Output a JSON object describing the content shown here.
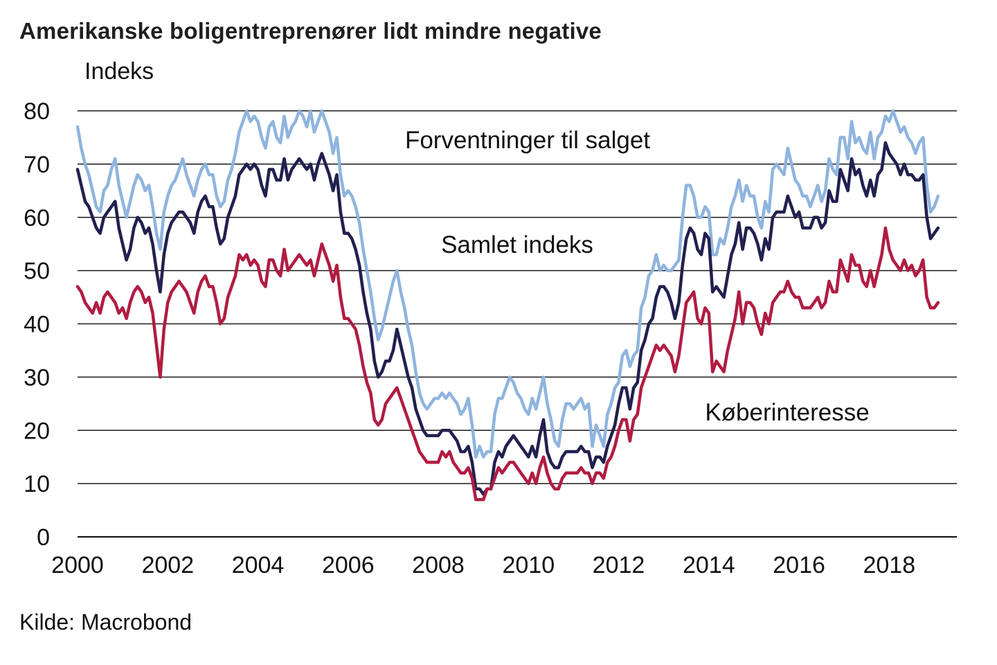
{
  "chart_data": {
    "type": "line",
    "title": "Amerikanske boligentreprenører lidt mindre negative",
    "ylabel": "Indeks",
    "xlabel": "",
    "source": "Kilde: Macrobond",
    "x_start": 2000.0,
    "x_interval": "monthly",
    "xlim": [
      2000,
      2019.5
    ],
    "ylim": [
      0,
      80
    ],
    "yticks": [
      0,
      10,
      20,
      30,
      40,
      50,
      60,
      70,
      80
    ],
    "xticks": [
      2000,
      2002,
      2004,
      2006,
      2008,
      2010,
      2012,
      2014,
      2016,
      2018
    ],
    "grid": "horizontal",
    "legend": "inline-annotations",
    "background": "#ffffff",
    "gridline_color": "#1a1a1a",
    "series": [
      {
        "name": "Forventninger til salget",
        "color": "#8FB4DE",
        "values": [
          77,
          73,
          70,
          68,
          65,
          62,
          61,
          65,
          66,
          69,
          71,
          66,
          63,
          60,
          63,
          66,
          68,
          67,
          65,
          66,
          62,
          57,
          54,
          61,
          64,
          66,
          67,
          69,
          71,
          68,
          66,
          64,
          67,
          69,
          70,
          68,
          68,
          64,
          62,
          63,
          67,
          69,
          72,
          76,
          78,
          80,
          78,
          79,
          78,
          75,
          73,
          77,
          78,
          75,
          74,
          79,
          75,
          77,
          78,
          80,
          79,
          77,
          80,
          76,
          78,
          80,
          78,
          76,
          72,
          75,
          68,
          64,
          65,
          64,
          62,
          59,
          54,
          50,
          46,
          41,
          37,
          39,
          42,
          45,
          48,
          50,
          46,
          43,
          39,
          36,
          31,
          27,
          25,
          24,
          25,
          26,
          26,
          27,
          26,
          27,
          26,
          25,
          23,
          24,
          26,
          21,
          15,
          17,
          15,
          16,
          16,
          23,
          26,
          26,
          28,
          30,
          29,
          27,
          26,
          24,
          23,
          26,
          24,
          27,
          30,
          25,
          22,
          18,
          17,
          22,
          25,
          25,
          24,
          25,
          26,
          24,
          25,
          17,
          21,
          19,
          17,
          23,
          25,
          28,
          29,
          34,
          35,
          32,
          34,
          35,
          43,
          45,
          49,
          50,
          53,
          50,
          51,
          50,
          50,
          51,
          52,
          60,
          66,
          66,
          64,
          60,
          60,
          62,
          61,
          53,
          53,
          56,
          55,
          58,
          62,
          64,
          67,
          63,
          66,
          64,
          64,
          60,
          58,
          63,
          61,
          69,
          70,
          69,
          68,
          73,
          70,
          67,
          66,
          64,
          64,
          62,
          64,
          66,
          63,
          65,
          71,
          69,
          68,
          75,
          75,
          71,
          78,
          74,
          75,
          73,
          72,
          76,
          71,
          75,
          76,
          79,
          78,
          80,
          78,
          76,
          77,
          75,
          74,
          72,
          74,
          75,
          66,
          61,
          62,
          64
        ]
      },
      {
        "name": "Samlet indeks",
        "color": "#21204F",
        "values": [
          69,
          66,
          63,
          62,
          60,
          58,
          57,
          60,
          61,
          62,
          63,
          58,
          55,
          52,
          54,
          58,
          60,
          59,
          57,
          58,
          55,
          50,
          46,
          53,
          57,
          59,
          60,
          61,
          61,
          60,
          59,
          57,
          61,
          63,
          64,
          62,
          62,
          58,
          55,
          56,
          60,
          62,
          64,
          68,
          69,
          70,
          69,
          70,
          69,
          66,
          64,
          69,
          69,
          67,
          67,
          71,
          67,
          69,
          70,
          71,
          70,
          69,
          70,
          67,
          70,
          72,
          70,
          68,
          65,
          68,
          61,
          57,
          57,
          56,
          54,
          51,
          46,
          42,
          39,
          33,
          30,
          31,
          33,
          33,
          35,
          39,
          36,
          33,
          30,
          28,
          24,
          22,
          20,
          19,
          19,
          19,
          19,
          20,
          20,
          20,
          19,
          18,
          16,
          16,
          17,
          14,
          9,
          9,
          8,
          9,
          9,
          14,
          16,
          15,
          17,
          18,
          19,
          18,
          17,
          16,
          15,
          17,
          15,
          19,
          22,
          16,
          14,
          13,
          13,
          15,
          16,
          16,
          16,
          16,
          17,
          16,
          16,
          13,
          15,
          15,
          14,
          17,
          19,
          21,
          25,
          28,
          28,
          24,
          28,
          29,
          35,
          37,
          40,
          41,
          45,
          47,
          47,
          46,
          44,
          41,
          44,
          51,
          56,
          58,
          57,
          54,
          53,
          57,
          56,
          46,
          47,
          46,
          45,
          49,
          53,
          55,
          59,
          54,
          58,
          58,
          57,
          55,
          52,
          56,
          54,
          60,
          61,
          61,
          61,
          64,
          62,
          60,
          61,
          58,
          58,
          58,
          60,
          60,
          58,
          59,
          65,
          63,
          63,
          69,
          67,
          65,
          71,
          68,
          69,
          66,
          64,
          67,
          64,
          68,
          69,
          74,
          72,
          71,
          70,
          68,
          70,
          68,
          68,
          67,
          67,
          68,
          60,
          56,
          57,
          58
        ]
      },
      {
        "name": "Køberinteresse",
        "color": "#B11C42",
        "values": [
          47,
          46,
          44,
          43,
          42,
          44,
          42,
          45,
          46,
          45,
          44,
          42,
          43,
          41,
          44,
          46,
          47,
          46,
          44,
          45,
          42,
          36,
          30,
          39,
          44,
          46,
          47,
          48,
          47,
          46,
          44,
          42,
          46,
          48,
          49,
          47,
          47,
          44,
          40,
          41,
          45,
          47,
          49,
          53,
          52,
          53,
          51,
          52,
          51,
          48,
          47,
          52,
          52,
          50,
          49,
          54,
          50,
          51,
          52,
          53,
          52,
          51,
          52,
          49,
          52,
          55,
          53,
          51,
          48,
          51,
          45,
          41,
          41,
          40,
          39,
          36,
          32,
          29,
          27,
          22,
          21,
          22,
          25,
          26,
          27,
          28,
          26,
          24,
          22,
          20,
          18,
          16,
          15,
          14,
          14,
          14,
          14,
          16,
          15,
          16,
          14,
          13,
          12,
          12,
          13,
          11,
          7,
          7,
          7,
          9,
          9,
          11,
          13,
          12,
          13,
          14,
          14,
          13,
          12,
          11,
          10,
          12,
          10,
          13,
          15,
          12,
          10,
          9,
          9,
          11,
          12,
          12,
          12,
          12,
          13,
          12,
          12,
          10,
          12,
          12,
          11,
          14,
          15,
          17,
          20,
          22,
          22,
          18,
          22,
          23,
          28,
          30,
          32,
          34,
          36,
          35,
          36,
          35,
          34,
          31,
          34,
          39,
          44,
          45,
          46,
          41,
          40,
          43,
          42,
          31,
          33,
          32,
          31,
          35,
          38,
          41,
          46,
          40,
          44,
          44,
          43,
          40,
          38,
          42,
          40,
          44,
          45,
          46,
          46,
          48,
          46,
          45,
          45,
          43,
          43,
          43,
          44,
          45,
          43,
          44,
          48,
          46,
          46,
          52,
          50,
          48,
          53,
          51,
          51,
          48,
          47,
          50,
          47,
          50,
          53,
          58,
          54,
          52,
          51,
          50,
          52,
          50,
          51,
          49,
          50,
          52,
          45,
          43,
          43,
          44
        ]
      }
    ],
    "annotations": [
      {
        "text": "Forventninger til salget",
        "color": "#8FB4DE"
      },
      {
        "text": "Samlet indeks",
        "color": "#21204F"
      },
      {
        "text": "Køberinteresse",
        "color": "#B11C42"
      }
    ]
  }
}
